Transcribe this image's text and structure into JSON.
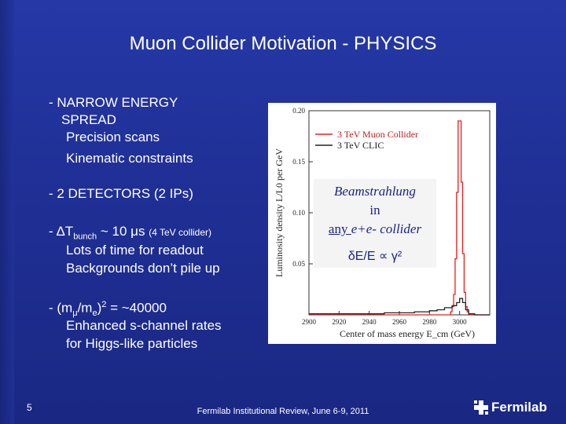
{
  "slide": {
    "title": "Muon Collider Motivation - PHYSICS",
    "page_number": "5",
    "footer": "Fermilab Institutional Review, June 6-9, 2011",
    "logo_text": "Fermilab"
  },
  "bullets": {
    "b1_line1": "- NARROW ENERGY",
    "b1_line2": "SPREAD",
    "b1_sub1": "Precision scans",
    "b1_sub2": "Kinematic constraints",
    "b2": "- 2 DETECTORS (2 IPs)",
    "b3_prefix": "- ΔT",
    "b3_sub": "bunch",
    "b3_main": " ~ 10 μs ",
    "b3_small": "(4 TeV collider)",
    "b3_sub1": "Lots of time for readout",
    "b3_sub2": "Backgrounds don’t pile up",
    "b4_prefix": "- (m",
    "b4_sub1": "μ",
    "b4_mid": "/m",
    "b4_sub2": "e",
    "b4_close": ")",
    "b4_sup": "2",
    "b4_suffix": " =  ~40000",
    "b4_sub_line1": "Enhanced s-channel rates",
    "b4_sub_line2": "for Higgs-like particles"
  },
  "annotation": {
    "line1": "Beamstrahlung",
    "line2": "in",
    "line3_any": "any ",
    "line3_rest": "e+e- collider",
    "line4": "δE/E ∝ γ²"
  },
  "chart_data": {
    "type": "line",
    "title": "",
    "xlabel": "Center of mass energy  E_cm (GeV)",
    "ylabel": "Luminosity density  L/L0  per GeV",
    "xlim": [
      2900,
      3020
    ],
    "ylim": [
      0,
      0.2
    ],
    "x_ticks": [
      "2900",
      "2920",
      "2940",
      "2960",
      "2980",
      "3000"
    ],
    "y_ticks": [
      "0.05",
      "0.10",
      "0.15",
      "0.20"
    ],
    "series": [
      {
        "name": "3 TeV Muon Collider",
        "color": "#e02020",
        "x": [
          2900,
          2990,
          2994,
          2995,
          2996,
          2997,
          2998,
          2999,
          3000,
          3001,
          3002,
          3003,
          3004,
          3005,
          3006,
          3010,
          3020
        ],
        "y": [
          0,
          0,
          0.003,
          0.008,
          0.02,
          0.055,
          0.12,
          0.19,
          0.19,
          0.13,
          0.06,
          0.022,
          0.008,
          0.003,
          0,
          0,
          0
        ]
      },
      {
        "name": "3 TeV CLIC",
        "color": "#222222",
        "x": [
          2900,
          2930,
          2950,
          2960,
          2970,
          2975,
          2980,
          2985,
          2990,
          2995,
          2998,
          3000,
          3002,
          3004,
          3006,
          3010,
          3020
        ],
        "y": [
          0.001,
          0.001,
          0.002,
          0.002,
          0.003,
          0.003,
          0.004,
          0.005,
          0.007,
          0.009,
          0.012,
          0.016,
          0.012,
          0.005,
          0.001,
          0,
          0
        ]
      }
    ]
  }
}
